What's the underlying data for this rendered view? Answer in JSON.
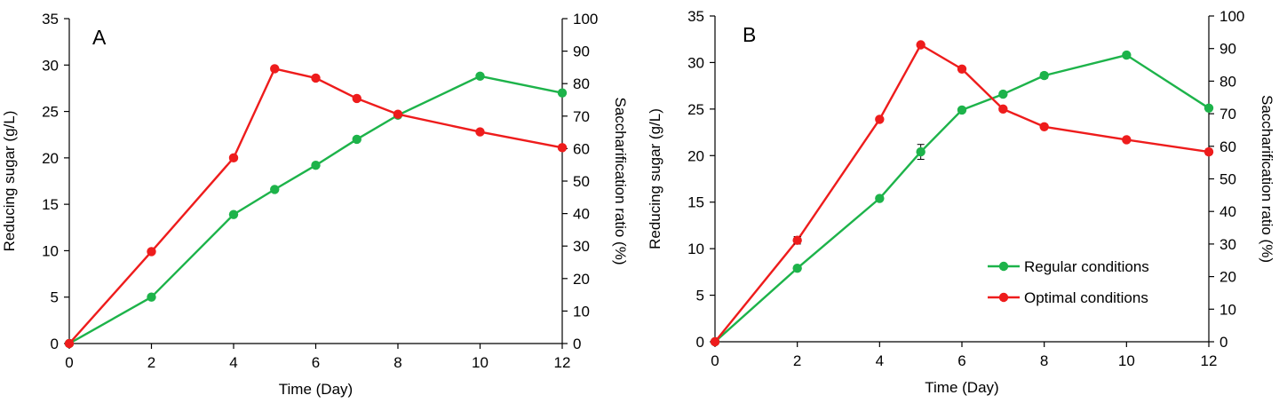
{
  "chart_data": [
    {
      "type": "line",
      "panel_label": "A",
      "xlabel": "Time (Day)",
      "ylabel": "Reducing sugar (g/L)",
      "y2label": "Saccharification ratio (%)",
      "xlim": [
        0,
        12
      ],
      "ylim": [
        0,
        35
      ],
      "y2lim": [
        0,
        100
      ],
      "xticks": [
        "0",
        "2",
        "4",
        "6",
        "8",
        "10",
        "12"
      ],
      "yticks": [
        "0",
        "5",
        "10",
        "15",
        "20",
        "25",
        "30",
        "35"
      ],
      "y2ticks": [
        "0",
        "10",
        "20",
        "30",
        "40",
        "50",
        "60",
        "70",
        "80",
        "90",
        "100"
      ],
      "grid": false,
      "legend": null,
      "series": [
        {
          "color": "#1db34a",
          "x": [
            0,
            2,
            4,
            5,
            6,
            7,
            8,
            10,
            12
          ],
          "y": [
            0,
            5.0,
            13.9,
            16.6,
            19.2,
            22.0,
            24.6,
            28.8,
            27.0
          ]
        },
        {
          "color": "#ee1c1c",
          "x": [
            0,
            2,
            4,
            5,
            6,
            7,
            8,
            10,
            12
          ],
          "y": [
            0,
            9.9,
            20.0,
            29.6,
            28.6,
            26.4,
            24.7,
            22.8,
            21.1
          ]
        }
      ]
    },
    {
      "type": "line",
      "panel_label": "B",
      "xlabel": "Time (Day)",
      "ylabel": "Reducing sugar (g/L)",
      "y2label": "Saccharification ratio (%)",
      "xlim": [
        0,
        12
      ],
      "ylim": [
        0,
        35
      ],
      "y2lim": [
        0,
        100
      ],
      "xticks": [
        "0",
        "2",
        "4",
        "6",
        "8",
        "10",
        "12"
      ],
      "yticks": [
        "0",
        "5",
        "10",
        "15",
        "20",
        "25",
        "30",
        "35"
      ],
      "y2ticks": [
        "0",
        "10",
        "20",
        "30",
        "40",
        "50",
        "60",
        "70",
        "80",
        "90",
        "100"
      ],
      "grid": false,
      "legend": "lower-right",
      "series": [
        {
          "name": "Regular conditions",
          "color": "#1db34a",
          "x": [
            0,
            2,
            4,
            5,
            6,
            7,
            8,
            10,
            12
          ],
          "y": [
            0,
            7.9,
            15.4,
            20.4,
            24.9,
            26.6,
            28.6,
            30.8,
            25.1
          ],
          "error": [
            0,
            0,
            0,
            0.8,
            0,
            0,
            0.3,
            0,
            0
          ]
        },
        {
          "name": "Optimal conditions",
          "color": "#ee1c1c",
          "x": [
            0,
            2,
            4,
            5,
            6,
            7,
            8,
            10,
            12
          ],
          "y": [
            0,
            10.9,
            23.9,
            31.9,
            29.3,
            25.0,
            23.1,
            21.7,
            20.4
          ],
          "error": [
            0,
            0.4,
            0,
            0,
            0,
            0,
            0,
            0,
            0.3
          ]
        }
      ]
    }
  ]
}
